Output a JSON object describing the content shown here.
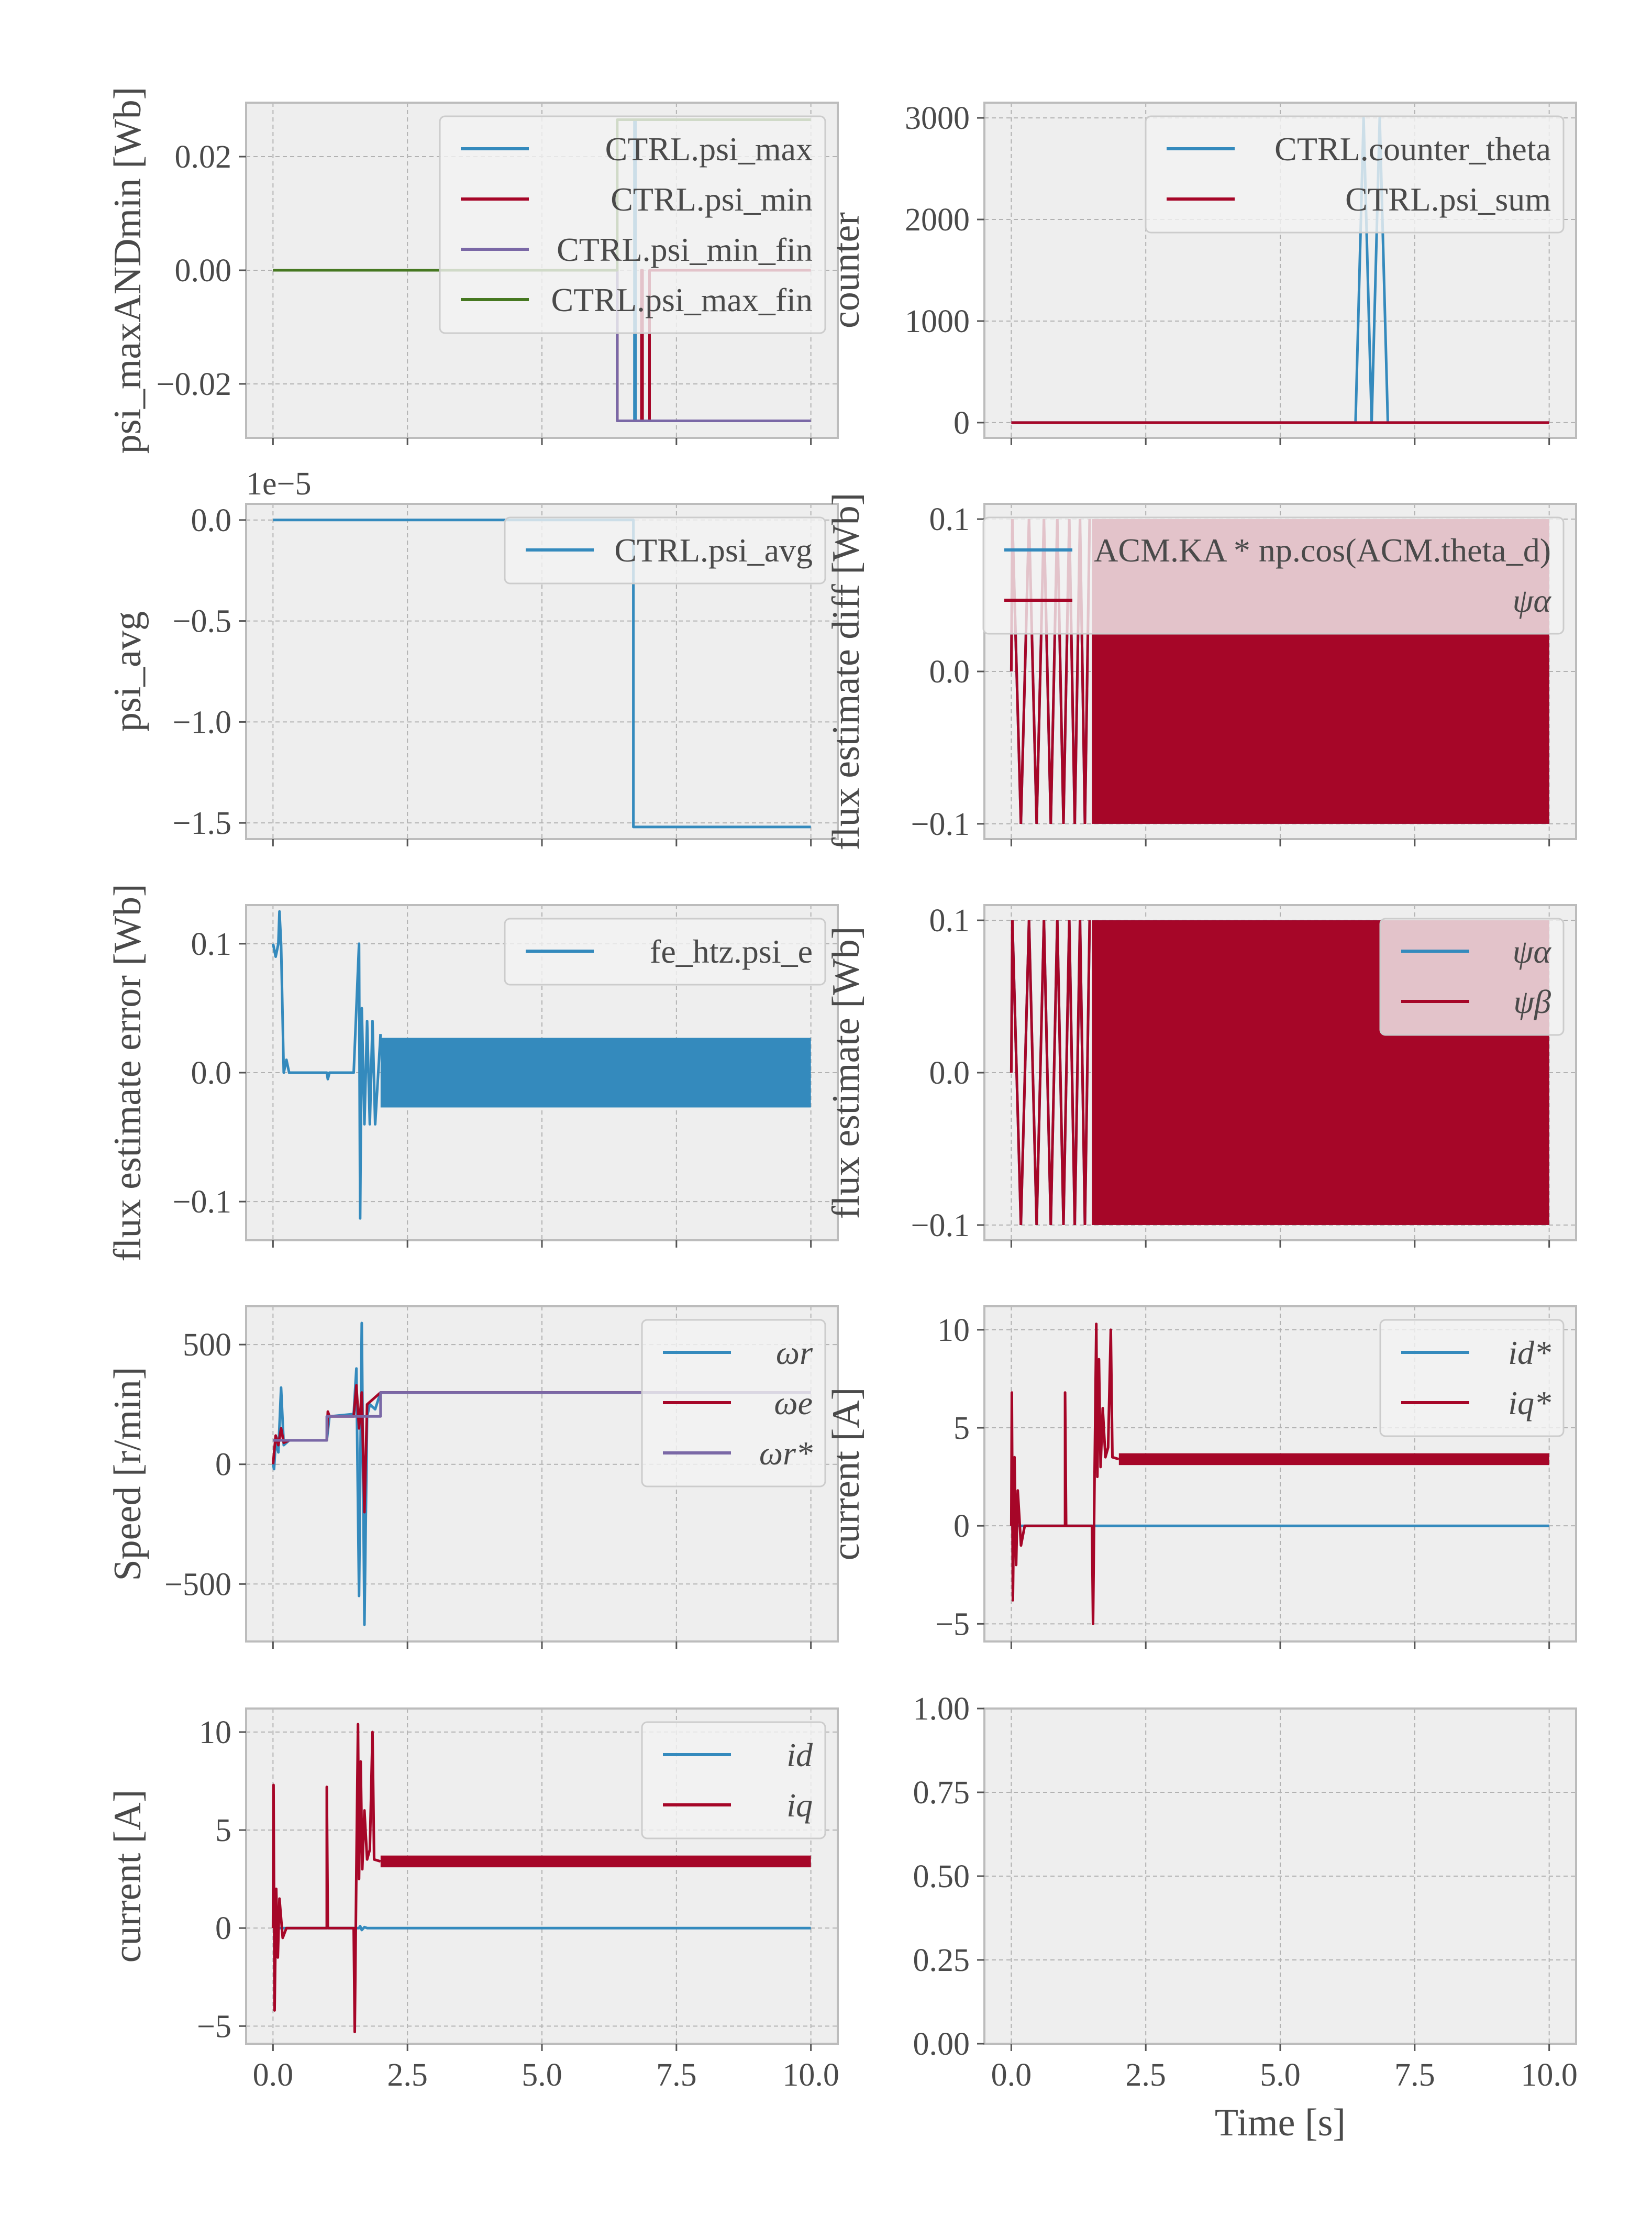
{
  "x_axis": {
    "xlim": [
      -0.5,
      10.5
    ],
    "ticks": [
      0.0,
      2.5,
      5.0,
      7.5,
      10.0
    ],
    "tick_labels": [
      "0.0",
      "2.5",
      "5.0",
      "7.5",
      "10.0"
    ],
    "xlabel": "Time [s]"
  },
  "chart_data": [
    {
      "id": "psi-maxmin",
      "type": "line",
      "ylabel": "psi_maxANDmin [Wb]",
      "ylim": [
        -0.0295,
        0.0295
      ],
      "yticks": [
        -0.02,
        0.0,
        0.02
      ],
      "ytick_labels": [
        "−0.02",
        "0.00",
        "0.02"
      ],
      "legend": "top-right",
      "series": [
        {
          "name": "CTRL.psi_max",
          "color": "#348ABD",
          "points": [
            [
              0,
              0
            ],
            [
              6.4,
              0
            ],
            [
              6.4,
              -0.0265
            ],
            [
              6.72,
              -0.0265
            ],
            [
              6.72,
              0.0265
            ],
            [
              6.74,
              0.0265
            ],
            [
              6.74,
              -0.0265
            ],
            [
              7.0,
              -0.0265
            ],
            [
              7.0,
              0
            ],
            [
              10,
              0
            ]
          ]
        },
        {
          "name": "CTRL.psi_min",
          "color": "#A60628",
          "points": [
            [
              0,
              0
            ],
            [
              6.4,
              0
            ],
            [
              6.4,
              -0.0265
            ],
            [
              6.85,
              -0.0265
            ],
            [
              6.85,
              0
            ],
            [
              6.87,
              0
            ],
            [
              6.87,
              -0.0265
            ],
            [
              7.0,
              -0.0265
            ],
            [
              7.0,
              0
            ],
            [
              10,
              0
            ]
          ]
        },
        {
          "name": "CTRL.psi_min_fin",
          "color": "#7A68A6",
          "points": [
            [
              0,
              0
            ],
            [
              6.4,
              0
            ],
            [
              6.4,
              -0.0265
            ],
            [
              10,
              -0.0265
            ]
          ]
        },
        {
          "name": "CTRL.psi_max_fin",
          "color": "#467821",
          "points": [
            [
              0,
              0
            ],
            [
              6.4,
              0
            ],
            [
              6.4,
              0.0265
            ],
            [
              10,
              0.0265
            ]
          ]
        }
      ]
    },
    {
      "id": "counter",
      "type": "line",
      "ylabel": "counter",
      "ylim": [
        -150,
        3150
      ],
      "yticks": [
        0,
        1000,
        2000,
        3000
      ],
      "ytick_labels": [
        "0",
        "1000",
        "2000",
        "3000"
      ],
      "legend": "top-right",
      "series": [
        {
          "name": "CTRL.counter_theta",
          "color": "#348ABD",
          "points": [
            [
              0,
              0
            ],
            [
              6.4,
              0
            ],
            [
              6.55,
              3000
            ],
            [
              6.7,
              0
            ],
            [
              6.85,
              3000
            ],
            [
              7.0,
              0
            ],
            [
              10,
              0
            ]
          ]
        },
        {
          "name": "CTRL.psi_sum",
          "color": "#A60628",
          "points": [
            [
              0,
              0
            ],
            [
              10,
              0
            ]
          ]
        }
      ]
    },
    {
      "id": "psi-avg",
      "type": "line",
      "ylabel": "psi_avg",
      "offset_label": "1e−5",
      "ylim": [
        -1.58,
        0.08
      ],
      "yticks": [
        -1.5,
        -1.0,
        -0.5,
        0.0
      ],
      "ytick_labels": [
        "−1.5",
        "−1.0",
        "−0.5",
        "0.0"
      ],
      "legend": "top-right",
      "series": [
        {
          "name": "CTRL.psi_avg",
          "color": "#348ABD",
          "points": [
            [
              0,
              0
            ],
            [
              6.7,
              0
            ],
            [
              6.7,
              -1.52
            ],
            [
              10,
              -1.52
            ]
          ]
        }
      ]
    },
    {
      "id": "flux-diff",
      "type": "line",
      "ylabel": "flux estimate diff [Wb]",
      "ylim": [
        -0.11,
        0.11
      ],
      "yticks": [
        -0.1,
        0.0,
        0.1
      ],
      "ytick_labels": [
        "−0.1",
        "0.0",
        "0.1"
      ],
      "legend": "top-right",
      "series": [
        {
          "name": "ACM.KA * np.cos(ACM.theta_d)",
          "color": "#348ABD",
          "amplitude": 0.1,
          "band_start": 1.5
        },
        {
          "name": "ψα",
          "color": "#A60628",
          "amplitude": 0.1,
          "band_start": 1.5
        }
      ]
    },
    {
      "id": "flux-error",
      "type": "line",
      "ylabel": "flux estimate error [Wb]",
      "ylim": [
        -0.13,
        0.13
      ],
      "yticks": [
        -0.1,
        0.0,
        0.1
      ],
      "ytick_labels": [
        "−0.1",
        "0.0",
        "0.1"
      ],
      "legend": "top-right",
      "series": [
        {
          "name": "fe_htz.psi_e",
          "color": "#348ABD",
          "band_start": 2.0,
          "band_amplitude": 0.027,
          "points": [
            [
              0,
              0.1
            ],
            [
              0.05,
              0.09
            ],
            [
              0.1,
              0.1
            ],
            [
              0.12,
              0.125
            ],
            [
              0.15,
              0.1
            ],
            [
              0.2,
              0.0
            ],
            [
              0.25,
              0.01
            ],
            [
              0.3,
              0.0
            ],
            [
              1.0,
              0.0
            ],
            [
              1.02,
              -0.005
            ],
            [
              1.05,
              0.0
            ],
            [
              1.5,
              0.0
            ],
            [
              1.55,
              0.05
            ],
            [
              1.6,
              0.1
            ],
            [
              1.62,
              -0.113
            ],
            [
              1.65,
              0.05
            ],
            [
              1.7,
              -0.04
            ],
            [
              1.75,
              0.04
            ],
            [
              1.8,
              -0.04
            ],
            [
              1.85,
              0.04
            ],
            [
              1.9,
              -0.04
            ],
            [
              2.0,
              0.03
            ]
          ]
        }
      ]
    },
    {
      "id": "flux-ab",
      "type": "line",
      "ylabel": "flux estimate [Wb]",
      "ylim": [
        -0.11,
        0.11
      ],
      "yticks": [
        -0.1,
        0.0,
        0.1
      ],
      "ytick_labels": [
        "−0.1",
        "0.0",
        "0.1"
      ],
      "legend": "top-right",
      "series": [
        {
          "name": "ψα",
          "color": "#348ABD",
          "amplitude": 0.1,
          "band_start": 1.5
        },
        {
          "name": "ψβ",
          "color": "#A60628",
          "amplitude": 0.1,
          "band_start": 1.5
        }
      ]
    },
    {
      "id": "speed",
      "type": "line",
      "ylabel": "Speed [r/min]",
      "ylim": [
        -740,
        660
      ],
      "yticks": [
        -500,
        0,
        500
      ],
      "ytick_labels": [
        "−500",
        "0",
        "500"
      ],
      "legend": "top-right",
      "series": [
        {
          "name": "ωr",
          "color": "#348ABD",
          "points": [
            [
              0,
              0
            ],
            [
              0.02,
              -20
            ],
            [
              0.05,
              100
            ],
            [
              0.1,
              50
            ],
            [
              0.15,
              320
            ],
            [
              0.2,
              80
            ],
            [
              0.3,
              100
            ],
            [
              1.0,
              100
            ],
            [
              1.05,
              200
            ],
            [
              1.5,
              210
            ],
            [
              1.55,
              400
            ],
            [
              1.6,
              -550
            ],
            [
              1.65,
              590
            ],
            [
              1.7,
              -670
            ],
            [
              1.75,
              200
            ],
            [
              1.8,
              250
            ],
            [
              1.9,
              230
            ],
            [
              2.0,
              300
            ],
            [
              10,
              300
            ]
          ]
        },
        {
          "name": "ωe",
          "color": "#A60628",
          "points": [
            [
              0,
              0
            ],
            [
              0.05,
              120
            ],
            [
              0.1,
              80
            ],
            [
              0.15,
              150
            ],
            [
              0.2,
              90
            ],
            [
              0.3,
              100
            ],
            [
              1.0,
              100
            ],
            [
              1.02,
              220
            ],
            [
              1.05,
              200
            ],
            [
              1.5,
              200
            ],
            [
              1.55,
              330
            ],
            [
              1.6,
              150
            ],
            [
              1.65,
              300
            ],
            [
              1.7,
              -200
            ],
            [
              1.75,
              250
            ],
            [
              2.0,
              300
            ],
            [
              10,
              300
            ]
          ]
        },
        {
          "name": "ωr*",
          "color": "#7A68A6",
          "points": [
            [
              0,
              100
            ],
            [
              0.25,
              100
            ],
            [
              1.0,
              100
            ],
            [
              1.0,
              200
            ],
            [
              2.0,
              200
            ],
            [
              2.0,
              300
            ],
            [
              10,
              300
            ]
          ]
        }
      ]
    },
    {
      "id": "current-ref",
      "type": "line",
      "ylabel": "current [A]",
      "ylim": [
        -5.9,
        11.2
      ],
      "yticks": [
        -5,
        0,
        5,
        10
      ],
      "ytick_labels": [
        "−5",
        "0",
        "5",
        "10"
      ],
      "legend": "top-right",
      "series": [
        {
          "name": "id*",
          "color": "#348ABD",
          "points": [
            [
              0,
              0
            ],
            [
              10,
              0
            ]
          ]
        },
        {
          "name": "iq*",
          "color": "#A60628",
          "band_start": 2.0,
          "band_center": 3.4,
          "band_amplitude": 0.3,
          "points": [
            [
              0,
              0
            ],
            [
              0.01,
              6.8
            ],
            [
              0.03,
              -3.8
            ],
            [
              0.06,
              3.5
            ],
            [
              0.09,
              -2.0
            ],
            [
              0.12,
              1.8
            ],
            [
              0.18,
              -1.0
            ],
            [
              0.25,
              0.0
            ],
            [
              1.0,
              0.0
            ],
            [
              1.0,
              6.8
            ],
            [
              1.02,
              0.0
            ],
            [
              1.5,
              0.0
            ],
            [
              1.52,
              -5.0
            ],
            [
              1.55,
              3.0
            ],
            [
              1.58,
              10.3
            ],
            [
              1.6,
              2.5
            ],
            [
              1.63,
              8.5
            ],
            [
              1.66,
              3.0
            ],
            [
              1.7,
              6.0
            ],
            [
              1.75,
              3.5
            ],
            [
              1.8,
              4.0
            ],
            [
              1.85,
              10.0
            ],
            [
              1.88,
              3.5
            ],
            [
              2.0,
              3.4
            ]
          ]
        }
      ]
    },
    {
      "id": "current-dq",
      "type": "line",
      "ylabel": "current [A]",
      "ylim": [
        -5.9,
        11.2
      ],
      "yticks": [
        -5,
        0,
        5,
        10
      ],
      "ytick_labels": [
        "−5",
        "0",
        "5",
        "10"
      ],
      "legend": "top-right",
      "series": [
        {
          "name": "id",
          "color": "#348ABD",
          "points": [
            [
              0,
              0
            ],
            [
              1.6,
              0
            ],
            [
              1.62,
              0.1
            ],
            [
              1.65,
              -0.1
            ],
            [
              1.7,
              0.05
            ],
            [
              1.75,
              0
            ],
            [
              10,
              0
            ]
          ]
        },
        {
          "name": "iq",
          "color": "#A60628",
          "band_start": 2.0,
          "band_center": 3.4,
          "band_amplitude": 0.3,
          "points": [
            [
              0,
              0
            ],
            [
              0.01,
              7.3
            ],
            [
              0.03,
              -4.2
            ],
            [
              0.06,
              2.0
            ],
            [
              0.09,
              -1.5
            ],
            [
              0.12,
              1.5
            ],
            [
              0.18,
              -0.5
            ],
            [
              0.25,
              0.0
            ],
            [
              1.0,
              0.0
            ],
            [
              1.0,
              7.2
            ],
            [
              1.02,
              0.0
            ],
            [
              1.5,
              0.0
            ],
            [
              1.52,
              -5.3
            ],
            [
              1.55,
              3.0
            ],
            [
              1.58,
              10.4
            ],
            [
              1.6,
              2.5
            ],
            [
              1.63,
              8.5
            ],
            [
              1.66,
              3.0
            ],
            [
              1.7,
              6.0
            ],
            [
              1.75,
              3.5
            ],
            [
              1.8,
              4.0
            ],
            [
              1.85,
              10.0
            ],
            [
              1.88,
              3.5
            ],
            [
              2.0,
              3.4
            ]
          ]
        }
      ]
    },
    {
      "id": "empty",
      "type": "line",
      "ylabel": "",
      "ylim": [
        0.0,
        1.0
      ],
      "yticks": [
        0.0,
        0.25,
        0.5,
        0.75,
        1.0
      ],
      "ytick_labels": [
        "0.00",
        "0.25",
        "0.50",
        "0.75",
        "1.00"
      ],
      "series": []
    }
  ]
}
